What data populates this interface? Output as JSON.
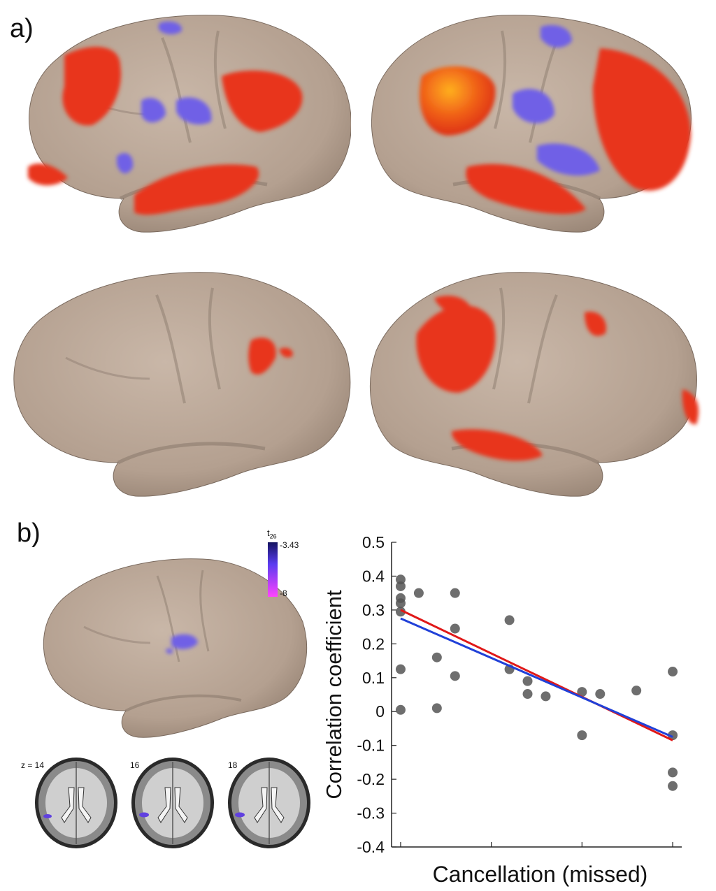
{
  "panels": {
    "a_label": "a)",
    "b_label": "b)"
  },
  "colorbar": {
    "title_main": "t",
    "title_sub": "26",
    "top_value": "-3.43",
    "bottom_value": "-8",
    "top_color": "#1a1a6e",
    "bottom_color": "#ff40ff"
  },
  "slices": [
    {
      "label": "z = 14"
    },
    {
      "label": "16"
    },
    {
      "label": "18"
    }
  ],
  "colors": {
    "cortex": "#b9a596",
    "activation_positive": "#e8361a",
    "activation_peak": "#ffa020",
    "activation_negative": "#7060e6"
  },
  "chart_data": {
    "type": "scatter",
    "xlabel": "Cancellation (missed)",
    "ylabel": "Correlation coefficient",
    "ylim": [
      -0.4,
      0.5
    ],
    "yticks": [
      "0.5",
      "0.4",
      "0.3",
      "0.2",
      "0.1",
      "0",
      "-0.1",
      "-0.2",
      "-0.3",
      "-0.4"
    ],
    "xlim": [
      -0.2,
      6.2
    ],
    "xticks": [
      0,
      2,
      4,
      6
    ],
    "points": [
      [
        0,
        0.39
      ],
      [
        0,
        0.37
      ],
      [
        0,
        0.335
      ],
      [
        0,
        0.32
      ],
      [
        0,
        0.295
      ],
      [
        0,
        0.125
      ],
      [
        0,
        0.005
      ],
      [
        0.4,
        0.35
      ],
      [
        0.8,
        0.16
      ],
      [
        0.8,
        0.01
      ],
      [
        1.2,
        0.35
      ],
      [
        1.2,
        0.245
      ],
      [
        1.2,
        0.105
      ],
      [
        2.4,
        0.27
      ],
      [
        2.4,
        0.125
      ],
      [
        2.8,
        0.09
      ],
      [
        2.8,
        0.052
      ],
      [
        3.2,
        0.045
      ],
      [
        4.0,
        0.058
      ],
      [
        4.0,
        -0.07
      ],
      [
        4.4,
        0.052
      ],
      [
        5.2,
        0.062
      ],
      [
        6,
        0.118
      ],
      [
        6,
        -0.07
      ],
      [
        6,
        -0.18
      ],
      [
        6,
        -0.22
      ]
    ],
    "fit_lines": [
      {
        "color": "#e01818",
        "x": [
          0,
          6
        ],
        "y": [
          0.3,
          -0.085
        ]
      },
      {
        "color": "#2040d8",
        "x": [
          0,
          6
        ],
        "y": [
          0.275,
          -0.075
        ]
      }
    ],
    "point_color": "#555555",
    "grid": false
  }
}
